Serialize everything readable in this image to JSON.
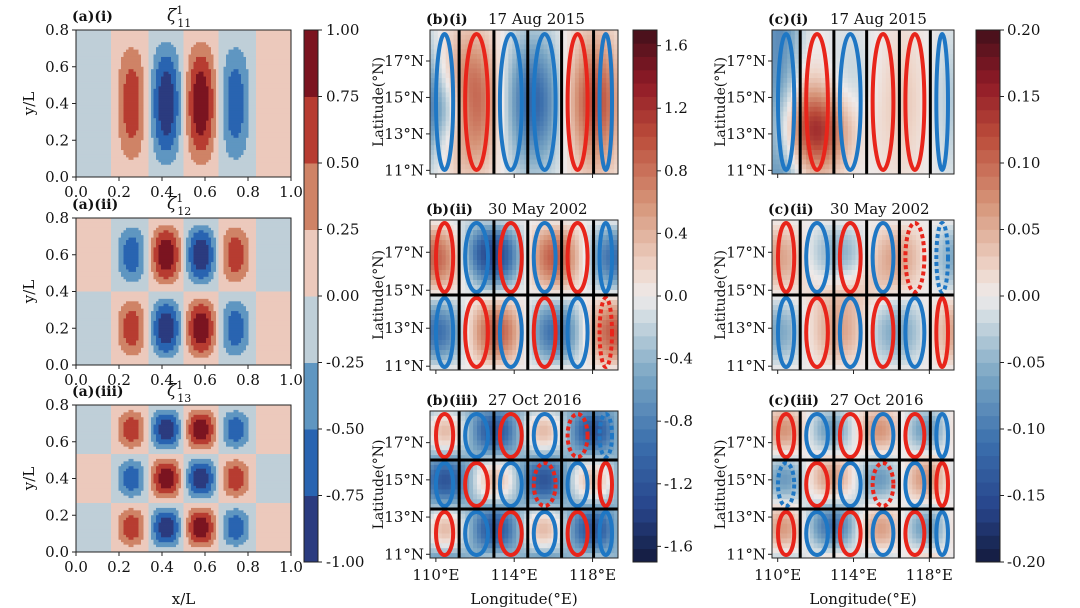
{
  "figure": {
    "panels_a": [
      {
        "label": "(a)(i)",
        "title_sym": "ζ",
        "title_sup": "1",
        "title_sub": "11",
        "ylabel": "y/L"
      },
      {
        "label": "(a)(ii)",
        "title_sym": "ζ",
        "title_sup": "1",
        "title_sub": "12",
        "ylabel": "y/L"
      },
      {
        "label": "(a)(iii)",
        "title_sym": "ζ",
        "title_sup": "1",
        "title_sub": "13",
        "ylabel": "y/L",
        "xlabel": "x/L"
      }
    ],
    "panels_b": [
      {
        "label": "(b)(i)",
        "date": "17 Aug 2015",
        "ylabel": "Latitude(°N)"
      },
      {
        "label": "(b)(ii)",
        "date": "30 May 2002",
        "ylabel": "Latitude(°N)"
      },
      {
        "label": "(b)(iii)",
        "date": "27 Oct 2016",
        "ylabel": "Latitude(°N)",
        "xlabel": "Longitude(°E)"
      }
    ],
    "panels_c": [
      {
        "label": "(c)(i)",
        "date": "17 Aug 2015",
        "ylabel": "Latitude(°N)"
      },
      {
        "label": "(c)(ii)",
        "date": "30 May 2002",
        "ylabel": "Latitude(°N)"
      },
      {
        "label": "(c)(iii)",
        "date": "27 Oct 2016",
        "ylabel": "Latitude(°N)",
        "xlabel": "Longitude(°E)"
      }
    ],
    "colors": {
      "positive": "#e8251b",
      "negative": "#1f77c4",
      "separator": "#000000"
    }
  },
  "chart_data": [
    {
      "panel": "a",
      "type": "heatmap",
      "description_source": "analytic vorticity modes zeta^1_1n",
      "xlim": [
        0.0,
        1.0
      ],
      "ylim": [
        0.0,
        0.8
      ],
      "x_ticks": [
        "0.0",
        "0.2",
        "0.4",
        "0.6",
        "0.8",
        "1.0"
      ],
      "y_ticks": [
        "0.0",
        "0.2",
        "0.4",
        "0.6",
        "0.8"
      ],
      "colorbar": {
        "levels": [
          -1.0,
          -0.75,
          -0.5,
          -0.25,
          0.0,
          0.25,
          0.5,
          0.75,
          1.0
        ],
        "tick_labels": [
          "-1.00",
          "-0.75",
          "-0.50",
          "-0.25",
          "0.00",
          "0.25",
          "0.50",
          "0.75",
          "1.00"
        ],
        "colors": [
          "#2b3b7f",
          "#2964b1",
          "#5f96c1",
          "#bfcfd8",
          "#ecc9bc",
          "#cf8366",
          "#b73c31",
          "#7b1420"
        ]
      }
    },
    {
      "panel": "b",
      "type": "heatmap",
      "xlim": [
        109.7,
        119.3
      ],
      "ylim": [
        10.8,
        18.7
      ],
      "x_ticks": [
        "110°E",
        "114°E",
        "118°E"
      ],
      "y_ticks": [
        "11°N",
        "13°N",
        "15°N",
        "17°N"
      ],
      "colorbar": {
        "range": [
          -1.7,
          1.7
        ],
        "tick_labels": [
          "-1.6",
          "-1.2",
          "-0.8",
          "-0.4",
          "0.0",
          "0.4",
          "0.8",
          "1.2",
          "1.6"
        ]
      }
    },
    {
      "panel": "c",
      "type": "heatmap",
      "xlim": [
        109.7,
        119.3
      ],
      "ylim": [
        10.8,
        18.7
      ],
      "x_ticks": [
        "110°E",
        "114°E",
        "118°E"
      ],
      "y_ticks": [
        "11°N",
        "13°N",
        "15°N",
        "17°N"
      ],
      "colorbar": {
        "range": [
          -0.2,
          0.2
        ],
        "tick_labels": [
          "-0.20",
          "-0.15",
          "-0.10",
          "-0.05",
          "0.00",
          "0.05",
          "0.10",
          "0.15",
          "0.20"
        ]
      }
    }
  ]
}
